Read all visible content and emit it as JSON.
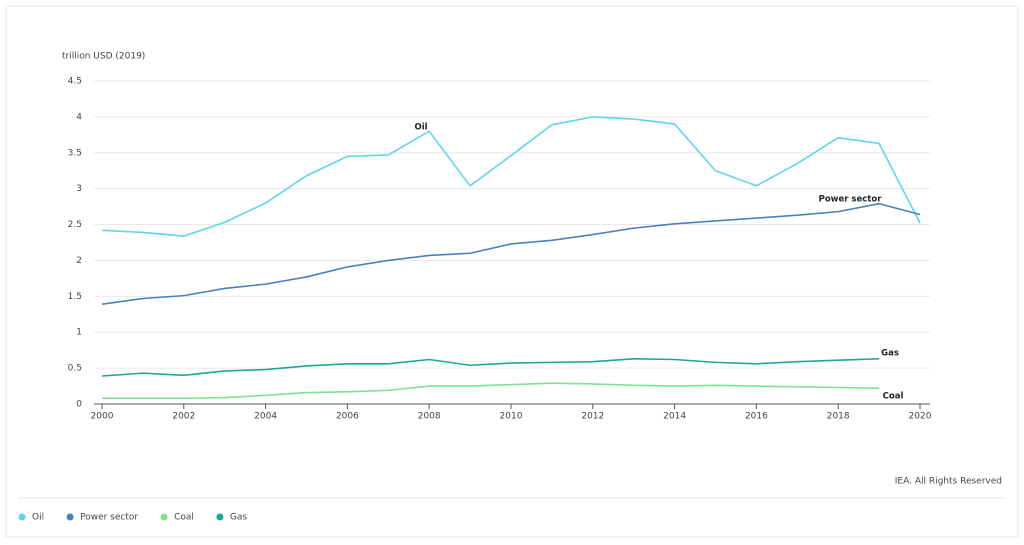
{
  "chart_data": {
    "type": "line",
    "y_label": "trillion USD (2019)",
    "source": "IEA. All Rights Reserved",
    "x": [
      2000,
      2001,
      2002,
      2003,
      2004,
      2005,
      2006,
      2007,
      2008,
      2009,
      2010,
      2011,
      2012,
      2013,
      2014,
      2015,
      2016,
      2017,
      2018,
      2019,
      2020
    ],
    "xlim": [
      2000,
      2020
    ],
    "xticks": [
      2000,
      2002,
      2004,
      2006,
      2008,
      2010,
      2012,
      2014,
      2016,
      2018,
      2020
    ],
    "ylim": [
      0,
      4.5
    ],
    "yticks": [
      0,
      0.5,
      1,
      1.5,
      2,
      2.5,
      3,
      3.5,
      4,
      4.5
    ],
    "grid": true,
    "legend": "bottom-left",
    "series": [
      {
        "name": "Oil",
        "color": "#5ed4ee",
        "values": [
          2.42,
          2.39,
          2.34,
          2.53,
          2.8,
          3.18,
          3.45,
          3.47,
          3.8,
          3.04,
          3.46,
          3.89,
          4.0,
          3.97,
          3.9,
          3.25,
          3.04,
          3.35,
          3.71,
          3.63,
          2.52
        ]
      },
      {
        "name": "Power sector",
        "color": "#4a7fc1",
        "values": [
          1.39,
          1.47,
          1.51,
          1.61,
          1.67,
          1.77,
          1.91,
          2.0,
          2.07,
          2.1,
          2.23,
          2.28,
          2.36,
          2.45,
          2.51,
          2.55,
          2.59,
          2.63,
          2.68,
          2.79,
          2.64
        ]
      },
      {
        "name": "Coal",
        "color": "#7de38f",
        "values": [
          0.08,
          0.08,
          0.08,
          0.09,
          0.12,
          0.16,
          0.17,
          0.19,
          0.25,
          0.25,
          0.27,
          0.29,
          0.28,
          0.26,
          0.25,
          0.26,
          0.25,
          0.24,
          0.23,
          0.22,
          null
        ]
      },
      {
        "name": "Gas",
        "color": "#1ba89a",
        "values": [
          0.39,
          0.43,
          0.4,
          0.46,
          0.48,
          0.53,
          0.56,
          0.56,
          0.62,
          0.54,
          0.57,
          0.58,
          0.59,
          0.63,
          0.62,
          0.58,
          0.56,
          0.59,
          0.61,
          0.63,
          null
        ]
      }
    ]
  }
}
